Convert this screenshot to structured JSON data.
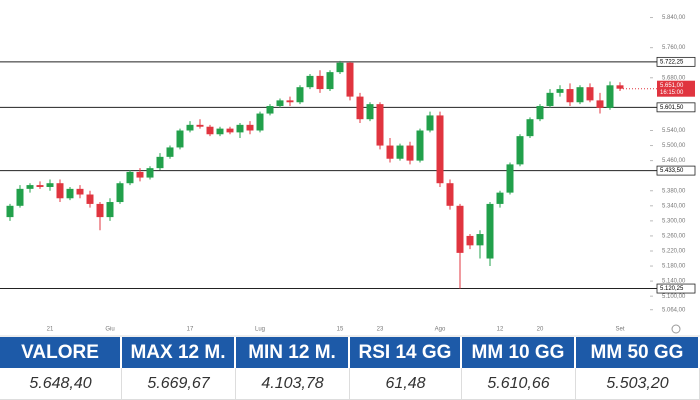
{
  "chart_data": {
    "type": "candlestick",
    "categories": [
      null,
      null,
      null,
      null,
      "21",
      null,
      null,
      null,
      null,
      null,
      "Giu",
      null,
      null,
      null,
      null,
      null,
      null,
      null,
      "17",
      null,
      null,
      null,
      null,
      null,
      null,
      "Lug",
      null,
      null,
      null,
      null,
      null,
      null,
      null,
      "15",
      null,
      null,
      null,
      "23",
      null,
      null,
      null,
      null,
      null,
      "Ago",
      null,
      null,
      null,
      null,
      null,
      "12",
      null,
      null,
      null,
      "20",
      null,
      null,
      null,
      null,
      null,
      null,
      null,
      "Set"
    ],
    "open": [
      5310,
      5340,
      5385,
      5395,
      5390,
      5400,
      5360,
      5385,
      5370,
      5345,
      5310,
      5350,
      5400,
      5430,
      5415,
      5440,
      5470,
      5495,
      5540,
      5555,
      5550,
      5530,
      5545,
      5535,
      5555,
      5540,
      5585,
      5605,
      5620,
      5615,
      5655,
      5685,
      5650,
      5695,
      5720,
      5630,
      5570,
      5610,
      5500,
      5465,
      5500,
      5460,
      5540,
      5580,
      5400,
      5340,
      5260,
      5235,
      5200,
      5345,
      5375,
      5450,
      5525,
      5570,
      5605,
      5640,
      5650,
      5615,
      5655,
      5620,
      5600,
      5660
    ],
    "high": [
      5345,
      5395,
      5400,
      5405,
      5410,
      5410,
      5390,
      5395,
      5380,
      5350,
      5360,
      5405,
      5435,
      5440,
      5445,
      5480,
      5500,
      5545,
      5565,
      5570,
      5555,
      5550,
      5550,
      5560,
      5565,
      5590,
      5610,
      5625,
      5630,
      5660,
      5690,
      5700,
      5700,
      5725,
      5722,
      5640,
      5615,
      5615,
      5520,
      5505,
      5510,
      5545,
      5590,
      5590,
      5410,
      5345,
      5265,
      5275,
      5350,
      5380,
      5455,
      5530,
      5575,
      5610,
      5650,
      5660,
      5665,
      5660,
      5665,
      5640,
      5670,
      5668
    ],
    "low": [
      5300,
      5335,
      5375,
      5385,
      5380,
      5350,
      5355,
      5360,
      5335,
      5275,
      5300,
      5345,
      5395,
      5405,
      5410,
      5435,
      5465,
      5490,
      5535,
      5545,
      5525,
      5525,
      5530,
      5520,
      5530,
      5535,
      5580,
      5600,
      5605,
      5610,
      5650,
      5640,
      5645,
      5690,
      5620,
      5560,
      5565,
      5490,
      5455,
      5460,
      5450,
      5455,
      5535,
      5390,
      5330,
      5120,
      5225,
      5200,
      5180,
      5335,
      5370,
      5445,
      5520,
      5565,
      5600,
      5630,
      5605,
      5610,
      5615,
      5585,
      5595,
      5645
    ],
    "close": [
      5340,
      5385,
      5395,
      5390,
      5400,
      5360,
      5385,
      5370,
      5345,
      5310,
      5350,
      5400,
      5430,
      5415,
      5440,
      5470,
      5495,
      5540,
      5555,
      5550,
      5530,
      5545,
      5535,
      5555,
      5540,
      5585,
      5605,
      5620,
      5615,
      5655,
      5685,
      5650,
      5695,
      5720,
      5630,
      5570,
      5610,
      5500,
      5465,
      5500,
      5460,
      5540,
      5580,
      5400,
      5340,
      5215,
      5235,
      5265,
      5345,
      5375,
      5450,
      5525,
      5570,
      5605,
      5640,
      5650,
      5615,
      5655,
      5620,
      5600,
      5660,
      5651
    ],
    "up_color": "#22a04b",
    "down_color": "#e0343f",
    "ylim": [
      5050,
      5860
    ],
    "yticks": [
      {
        "value": 5840,
        "label": "5.840,00"
      },
      {
        "value": 5760,
        "label": "5.760,00"
      },
      {
        "value": 5680,
        "label": "5.680,00"
      },
      {
        "value": 5540,
        "label": "5.540,00"
      },
      {
        "value": 5500,
        "label": "5.500,00"
      },
      {
        "value": 5460,
        "label": "5.460,00"
      },
      {
        "value": 5380,
        "label": "5.380,00"
      },
      {
        "value": 5340,
        "label": "5.340,00"
      },
      {
        "value": 5300,
        "label": "5.300,00"
      },
      {
        "value": 5260,
        "label": "5.260,00"
      },
      {
        "value": 5220,
        "label": "5.220,00"
      },
      {
        "value": 5180,
        "label": "5.180,00"
      },
      {
        "value": 5140,
        "label": "5.140,00"
      },
      {
        "value": 5100,
        "label": "5.100,00"
      },
      {
        "value": 5064,
        "label": "5.064,00"
      }
    ],
    "levels": [
      {
        "value": 5722.25,
        "label": "5.722,25"
      },
      {
        "value": 5601.5,
        "label": "5.601,50"
      },
      {
        "value": 5433.5,
        "label": "5.433,50"
      },
      {
        "value": 5120.25,
        "label": "5.120,25"
      }
    ],
    "last_price": {
      "value": 5651,
      "label": "5.651,00"
    },
    "countdown": "16:15:00"
  },
  "table": {
    "header": [
      "VALORE",
      "MAX 12 M.",
      "MIN 12 M.",
      "RSI 14 GG",
      "MM 10 GG",
      "MM 50 GG"
    ],
    "rows": [
      [
        "5.648,40",
        "5.669,67",
        "4.103,78",
        "61,48",
        "5.610,66",
        "5.503,20"
      ]
    ]
  }
}
